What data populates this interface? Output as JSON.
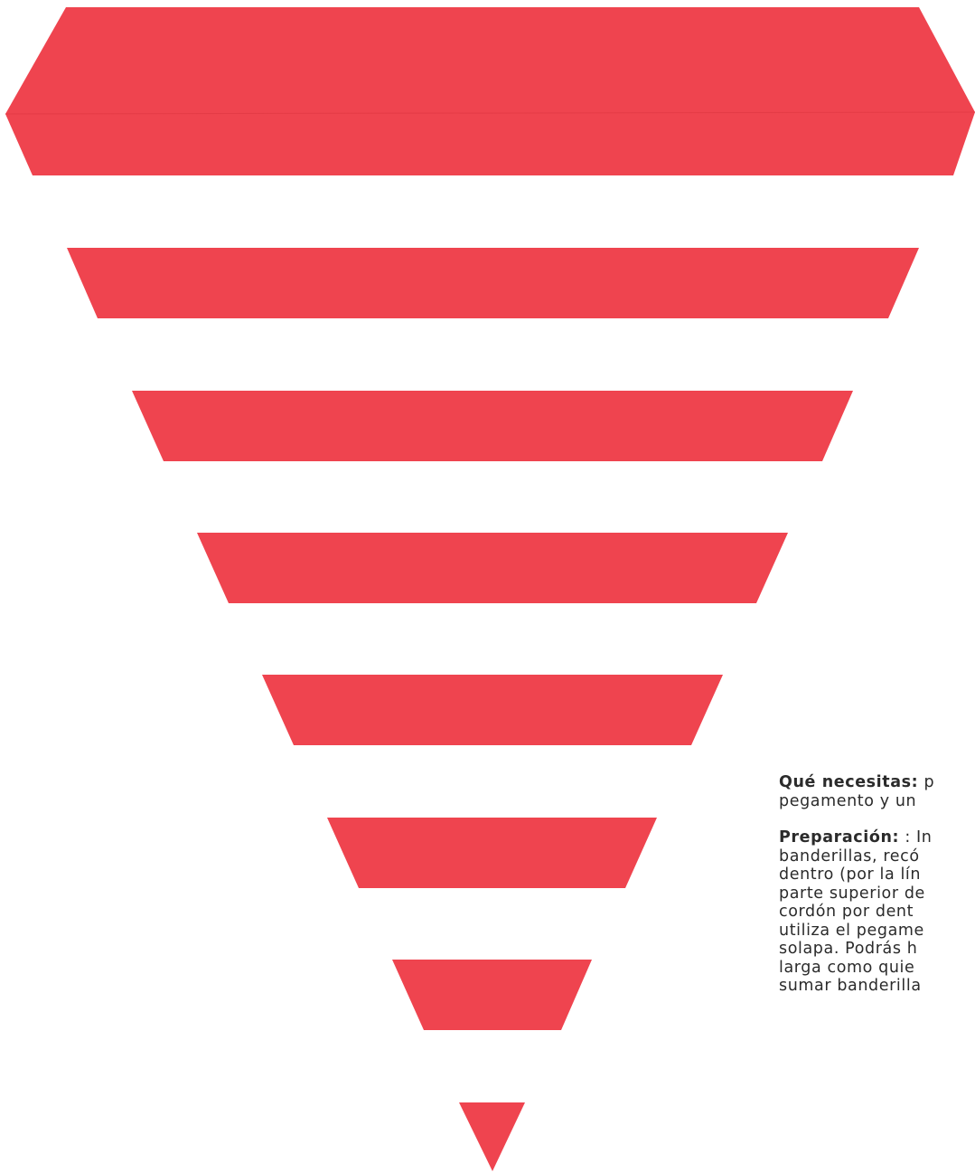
{
  "colors": {
    "flag": "#ef444f",
    "text": "#2b2b2b",
    "background": "#ffffff"
  },
  "flags": [
    {
      "shape": "banner-with-fold-flap"
    },
    {
      "shape": "trapezoid"
    },
    {
      "shape": "trapezoid"
    },
    {
      "shape": "trapezoid"
    },
    {
      "shape": "trapezoid"
    },
    {
      "shape": "trapezoid"
    },
    {
      "shape": "trapezoid"
    },
    {
      "shape": "triangle"
    }
  ],
  "instructions": {
    "needs": {
      "label": "Qué necesitas:",
      "lines": [
        "p",
        "pegamento y un"
      ]
    },
    "preparation": {
      "label": "Preparación:",
      "lines": [
        ": In",
        "banderillas, recó",
        "dentro (por la lín",
        "parte superior de",
        "cordón por dent",
        "utiliza el pegame",
        "solapa. Podrás h",
        "larga como quie",
        "sumar banderilla"
      ]
    }
  }
}
